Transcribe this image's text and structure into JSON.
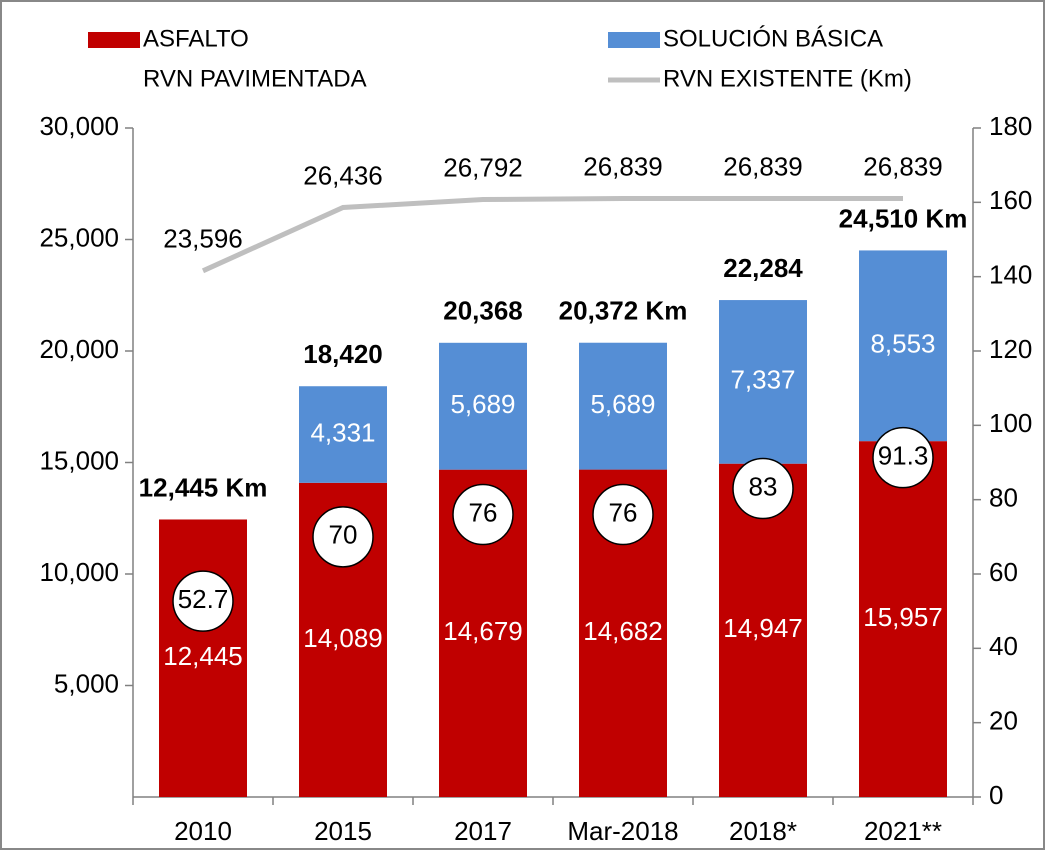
{
  "chart_data": {
    "type": "bar",
    "stacked": true,
    "categories": [
      "2010",
      "2015",
      "2017",
      "Mar-2018",
      "2018*",
      "2021**"
    ],
    "series": [
      {
        "name": "ASFALTO",
        "color": "#c00000",
        "values": [
          12445,
          14089,
          14679,
          14682,
          14947,
          15957
        ],
        "value_labels": [
          "12,445",
          "14,089",
          "14,679",
          "14,682",
          "14,947",
          "15,957"
        ]
      },
      {
        "name": "SOLUCIÓN BÁSICA",
        "color": "#558ed5",
        "values": [
          null,
          4331,
          5689,
          5689,
          7337,
          8553
        ],
        "value_labels": [
          null,
          "4,331",
          "5,689",
          "5,689",
          "7,337",
          "8,553"
        ]
      },
      {
        "name": "RVN PAVIMENTADA",
        "type": "scatter",
        "axis": "y2",
        "color": "#ffffff",
        "values": [
          52.7,
          70,
          76,
          76,
          83,
          91.3
        ]
      },
      {
        "name": "RVN EXISTENTE (Km)",
        "type": "line",
        "color": "#bfbfbf",
        "values": [
          23596,
          26436,
          26792,
          26839,
          26839,
          26839
        ],
        "value_labels": [
          "23,596",
          "26,436",
          "26,792",
          "26,839",
          "26,839",
          "26,839"
        ]
      }
    ],
    "totals": [
      12445,
      18420,
      20368,
      20372,
      22284,
      24510
    ],
    "total_labels": [
      "12,445 Km",
      "18,420",
      "20,368",
      "20,372 Km",
      "22,284",
      "24,510 Km"
    ],
    "ylim": [
      0,
      30000
    ],
    "yticks": [
      {
        "value": 5000,
        "label": "5,000"
      },
      {
        "value": 10000,
        "label": "10,000"
      },
      {
        "value": 15000,
        "label": "15,000"
      },
      {
        "value": 20000,
        "label": "20,000"
      },
      {
        "value": 25000,
        "label": "25,000"
      },
      {
        "value": 30000,
        "label": "30,000"
      }
    ],
    "y2lim": [
      0,
      180
    ],
    "y2ticks": [
      0,
      20,
      40,
      60,
      80,
      100,
      120,
      140,
      160,
      180
    ]
  }
}
